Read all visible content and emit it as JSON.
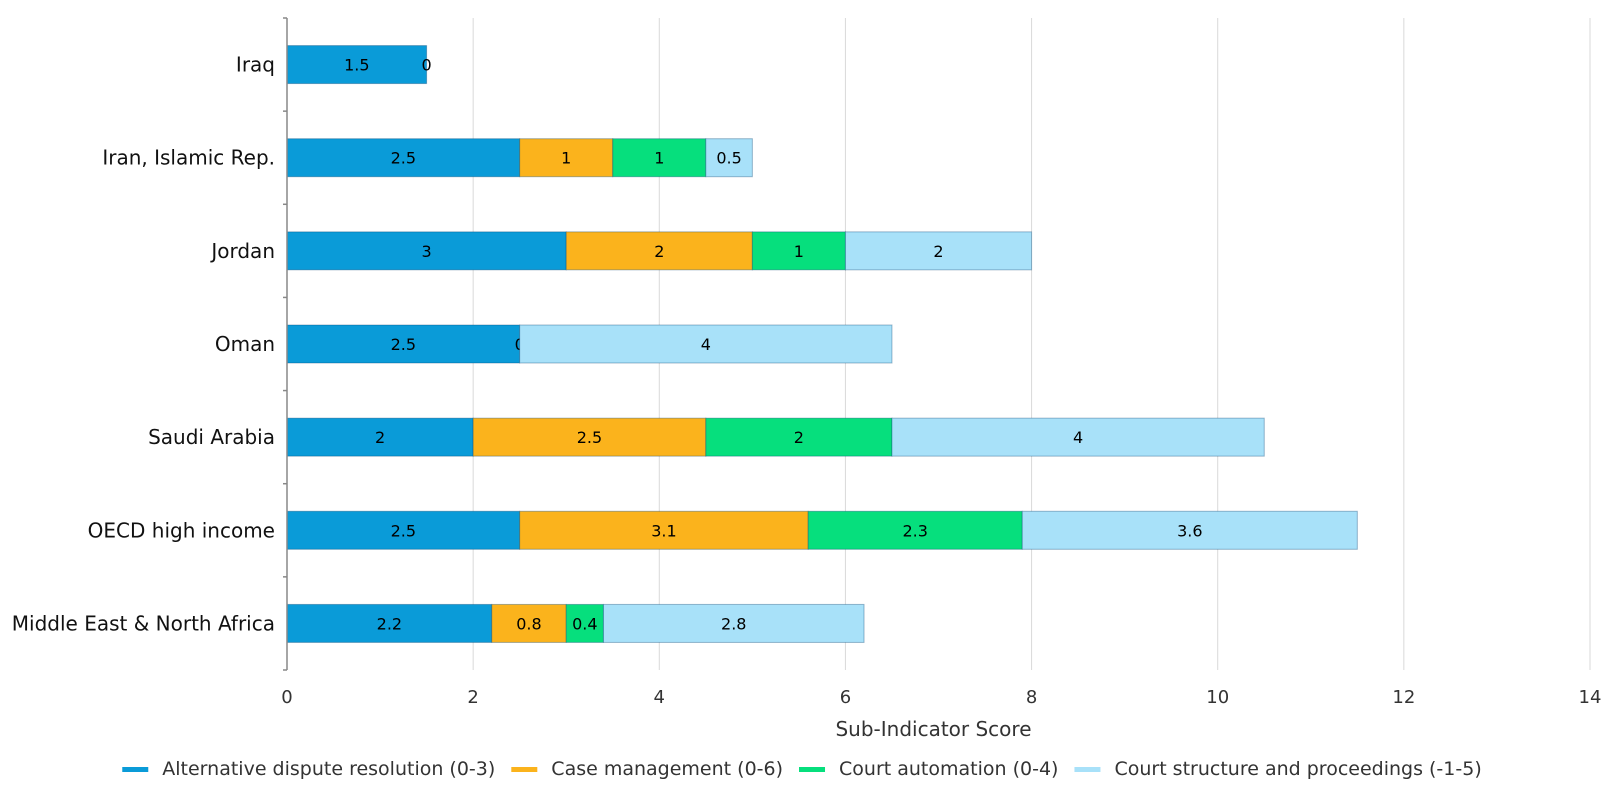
{
  "chart_data": {
    "type": "bar",
    "orientation": "horizontal",
    "stacked": true,
    "xlabel": "Sub-Indicator Score",
    "xlim": [
      0,
      14
    ],
    "xticks": [
      0,
      2,
      4,
      6,
      8,
      10,
      12,
      14
    ],
    "grid": "vertical",
    "legend_position": "bottom",
    "categories": [
      "Iraq",
      "Iran, Islamic Rep.",
      "Jordan",
      "Oman",
      "Saudi Arabia",
      "OECD high income",
      "Middle East & North Africa"
    ],
    "series": [
      {
        "name": "Alternative dispute resolution (0-3)",
        "color": "#0a9bd8",
        "values": [
          1.5,
          2.5,
          3,
          2.5,
          2,
          2.5,
          2.2
        ]
      },
      {
        "name": "Case management (0-6)",
        "color": "#fbb31c",
        "values": [
          0,
          1,
          2,
          0,
          2.5,
          3.1,
          0.8
        ]
      },
      {
        "name": "Court automation (0-4)",
        "color": "#06df7d",
        "values": [
          null,
          1,
          1,
          null,
          2,
          2.3,
          0.4
        ]
      },
      {
        "name": "Court structure and proceedings (-1-5)",
        "color": "#a8e1f9",
        "values": [
          null,
          0.5,
          2,
          4,
          4,
          3.6,
          2.8
        ]
      }
    ]
  }
}
